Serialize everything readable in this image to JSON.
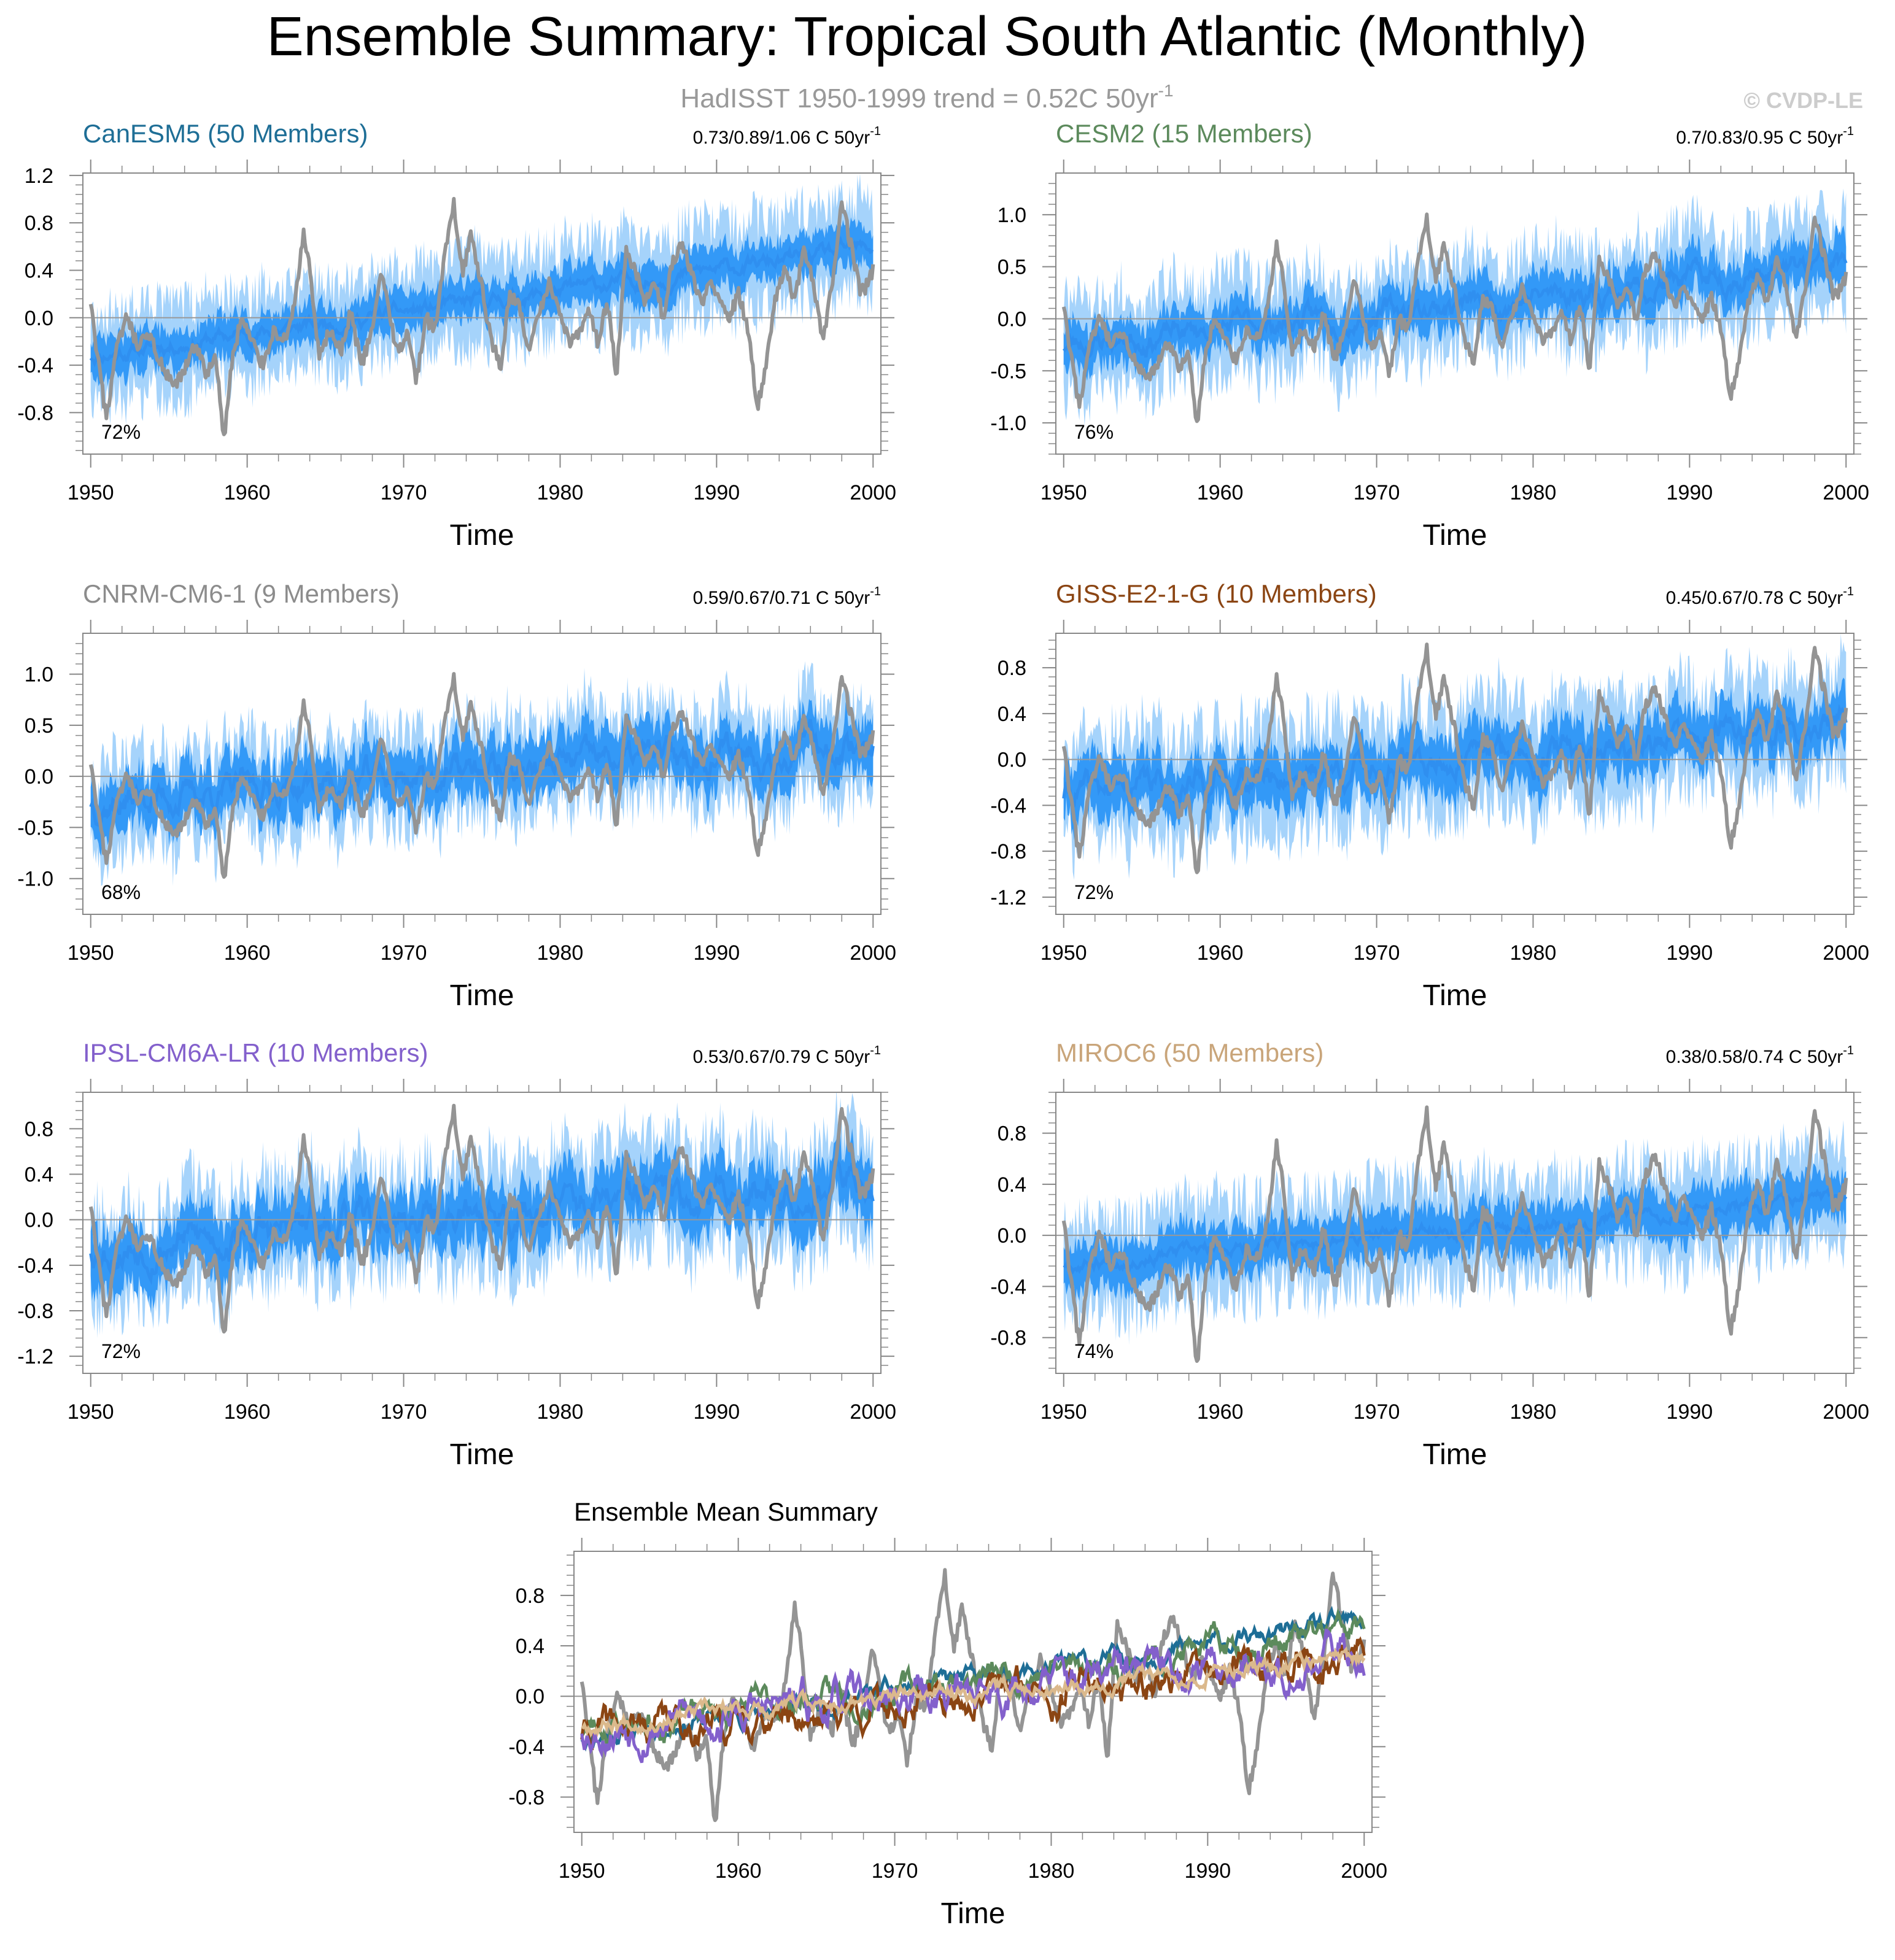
{
  "page": {
    "title": "Ensemble Summary: Tropical South Atlantic (Monthly)",
    "subtitle_main": "HadISST 1950-1999 trend = 0.52C 50yr",
    "subtitle_sup": "-1",
    "copyright": "© CVDP-LE"
  },
  "colors": {
    "obs": "#949494",
    "band_outer": "#a5d3fb",
    "band_inner": "#3399f7",
    "mean": "#2f8ff0",
    "zero_line": "#999999",
    "axis": "#888888"
  },
  "chart_data": [
    {
      "type": "line",
      "title": "CanESM5 (50 Members)",
      "title_color": "#1e6e96",
      "stats": "0.73/0.89/1.06 C 50yr",
      "stats_sup": "-1",
      "percent": "72%",
      "xlabel": "Time",
      "xlim": [
        1949.5,
        2000.5
      ],
      "ylim": [
        -1.15,
        1.22
      ],
      "xticks": [
        "1950",
        "1960",
        "1970",
        "1980",
        "1990",
        "2000"
      ],
      "yticks": [
        "1.2",
        "0.8",
        "0.4",
        "0.0",
        "-0.4",
        "-0.8"
      ],
      "ytick_values": [
        1.2,
        0.8,
        0.4,
        0.0,
        -0.4,
        -0.8
      ],
      "ensemble_mean": {
        "start": -0.32,
        "end": 0.58,
        "spread_inner": 0.16,
        "spread_outer": 0.38,
        "noise": 0.05,
        "seed": 11
      }
    },
    {
      "type": "line",
      "title": "CESM2 (15 Members)",
      "title_color": "#5c8a5c",
      "stats": "0.7/0.83/0.95 C 50yr",
      "stats_sup": "-1",
      "percent": "76%",
      "xlabel": "Time",
      "xlim": [
        1949.5,
        2000.5
      ],
      "ylim": [
        -1.3,
        1.4
      ],
      "xticks": [
        "1950",
        "1960",
        "1970",
        "1980",
        "1990",
        "2000"
      ],
      "yticks": [
        "1.0",
        "0.5",
        "0.0",
        "-0.5",
        "-1.0"
      ],
      "ytick_values": [
        1.0,
        0.5,
        0.0,
        -0.5,
        -1.0
      ],
      "ensemble_mean": {
        "start": -0.25,
        "end": 0.52,
        "spread_inner": 0.2,
        "spread_outer": 0.45,
        "noise": 0.09,
        "seed": 23
      }
    },
    {
      "type": "line",
      "title": "CNRM-CM6-1 (9 Members)",
      "title_color": "#8c8c8c",
      "stats": "0.59/0.67/0.71 C 50yr",
      "stats_sup": "-1",
      "percent": "68%",
      "xlabel": "Time",
      "xlim": [
        1949.5,
        2000.5
      ],
      "ylim": [
        -1.35,
        1.4
      ],
      "xticks": [
        "1950",
        "1960",
        "1970",
        "1980",
        "1990",
        "2000"
      ],
      "yticks": [
        "1.0",
        "0.5",
        "0.0",
        "-0.5",
        "-1.0"
      ],
      "ytick_values": [
        1.0,
        0.5,
        0.0,
        -0.5,
        -1.0
      ],
      "ensemble_mean": {
        "start": -0.25,
        "end": 0.35,
        "spread_inner": 0.25,
        "spread_outer": 0.45,
        "noise": 0.12,
        "seed": 37
      }
    },
    {
      "type": "line",
      "title": "GISS-E2-1-G (10 Members)",
      "title_color": "#8b4513",
      "stats": "0.45/0.67/0.78 C 50yr",
      "stats_sup": "-1",
      "percent": "72%",
      "xlabel": "Time",
      "xlim": [
        1949.5,
        2000.5
      ],
      "ylim": [
        -1.35,
        1.1
      ],
      "xticks": [
        "1950",
        "1960",
        "1970",
        "1980",
        "1990",
        "2000"
      ],
      "yticks": [
        "0.8",
        "0.4",
        "0.0",
        "-0.4",
        "-0.8",
        "-1.2"
      ],
      "ytick_values": [
        0.8,
        0.4,
        0.0,
        -0.4,
        -0.8,
        -1.2
      ],
      "ensemble_mean": {
        "start": -0.3,
        "end": 0.3,
        "spread_inner": 0.22,
        "spread_outer": 0.45,
        "noise": 0.1,
        "seed": 41
      }
    },
    {
      "type": "line",
      "title": "IPSL-CM6A-LR (10 Members)",
      "title_color": "#8360cc",
      "stats": "0.53/0.67/0.79 C 50yr",
      "stats_sup": "-1",
      "percent": "72%",
      "xlabel": "Time",
      "xlim": [
        1949.5,
        2000.5
      ],
      "ylim": [
        -1.35,
        1.12
      ],
      "xticks": [
        "1950",
        "1960",
        "1970",
        "1980",
        "1990",
        "2000"
      ],
      "yticks": [
        "0.8",
        "0.4",
        "0.0",
        "-0.4",
        "-0.8",
        "-1.2"
      ],
      "ytick_values": [
        0.8,
        0.4,
        0.0,
        -0.4,
        -0.8,
        -1.2
      ],
      "ensemble_mean": {
        "start": -0.25,
        "end": 0.35,
        "spread_inner": 0.25,
        "spread_outer": 0.45,
        "noise": 0.12,
        "seed": 53
      }
    },
    {
      "type": "line",
      "title": "MIROC6 (50 Members)",
      "title_color": "#c9a57a",
      "stats": "0.38/0.58/0.74 C 50yr",
      "stats_sup": "-1",
      "percent": "74%",
      "xlabel": "Time",
      "xlim": [
        1949.5,
        2000.5
      ],
      "ylim": [
        -1.08,
        1.12
      ],
      "xticks": [
        "1950",
        "1960",
        "1970",
        "1980",
        "1990",
        "2000"
      ],
      "yticks": [
        "0.8",
        "0.4",
        "0.0",
        "-0.4",
        "-0.8"
      ],
      "ytick_values": [
        0.8,
        0.4,
        0.0,
        -0.4,
        -0.8
      ],
      "ensemble_mean": {
        "start": -0.22,
        "end": 0.3,
        "spread_inner": 0.18,
        "spread_outer": 0.38,
        "noise": 0.04,
        "seed": 67
      }
    },
    {
      "type": "line",
      "title": "Ensemble Mean Summary",
      "title_color": "#000000",
      "xlabel": "Time",
      "xlim": [
        1949.5,
        2000.5
      ],
      "ylim": [
        -1.08,
        1.15
      ],
      "xticks": [
        "1950",
        "1960",
        "1970",
        "1980",
        "1990",
        "2000"
      ],
      "yticks": [
        "0.8",
        "0.4",
        "0.0",
        "-0.4",
        "-0.8"
      ],
      "ytick_values": [
        0.8,
        0.4,
        0.0,
        -0.4,
        -0.8
      ],
      "series": [
        {
          "name": "CanESM5",
          "color": "#1e6e96",
          "start": -0.32,
          "end": 0.58,
          "noise": 0.06,
          "seed": 11
        },
        {
          "name": "CESM2",
          "color": "#5c8a5c",
          "start": -0.25,
          "end": 0.52,
          "noise": 0.09,
          "seed": 23
        },
        {
          "name": "GISS-E2-1-G",
          "color": "#8b4513",
          "start": -0.3,
          "end": 0.3,
          "noise": 0.11,
          "seed": 41
        },
        {
          "name": "IPSL-CM6A-LR",
          "color": "#8360cc",
          "start": -0.25,
          "end": 0.35,
          "noise": 0.12,
          "seed": 53
        },
        {
          "name": "MIROC6",
          "color": "#dbb98c",
          "start": -0.22,
          "end": 0.3,
          "noise": 0.05,
          "seed": 67
        }
      ]
    }
  ],
  "observations": {
    "name": "HadISST",
    "anchors": [
      [
        1950.0,
        0.1
      ],
      [
        1950.5,
        -0.4
      ],
      [
        1951.0,
        -0.85
      ],
      [
        1951.6,
        -0.3
      ],
      [
        1952.3,
        0.0
      ],
      [
        1953.0,
        -0.25
      ],
      [
        1953.8,
        -0.15
      ],
      [
        1954.5,
        -0.4
      ],
      [
        1955.3,
        -0.6
      ],
      [
        1956.0,
        -0.45
      ],
      [
        1956.7,
        -0.2
      ],
      [
        1957.4,
        -0.5
      ],
      [
        1958.0,
        -0.3
      ],
      [
        1958.5,
        -1.05
      ],
      [
        1959.0,
        -0.4
      ],
      [
        1959.6,
        0.0
      ],
      [
        1960.3,
        -0.2
      ],
      [
        1961.0,
        -0.4
      ],
      [
        1961.7,
        -0.1
      ],
      [
        1962.4,
        -0.2
      ],
      [
        1963.0,
        0.1
      ],
      [
        1963.6,
        0.7
      ],
      [
        1964.0,
        0.4
      ],
      [
        1964.6,
        -0.35
      ],
      [
        1965.3,
        -0.1
      ],
      [
        1966.0,
        -0.3
      ],
      [
        1966.6,
        0.05
      ],
      [
        1967.3,
        -0.4
      ],
      [
        1968.0,
        -0.1
      ],
      [
        1968.6,
        0.4
      ],
      [
        1969.0,
        0.1
      ],
      [
        1969.6,
        -0.3
      ],
      [
        1970.3,
        -0.1
      ],
      [
        1970.8,
        -0.55
      ],
      [
        1971.4,
        0.0
      ],
      [
        1972.0,
        -0.1
      ],
      [
        1972.6,
        0.5
      ],
      [
        1973.2,
        0.95
      ],
      [
        1973.8,
        0.4
      ],
      [
        1974.3,
        0.7
      ],
      [
        1975.0,
        0.25
      ],
      [
        1975.6,
        -0.2
      ],
      [
        1976.2,
        -0.4
      ],
      [
        1976.8,
        0.2
      ],
      [
        1977.4,
        0.1
      ],
      [
        1978.0,
        -0.3
      ],
      [
        1978.6,
        0.0
      ],
      [
        1979.3,
        0.3
      ],
      [
        1980.0,
        0.05
      ],
      [
        1980.6,
        -0.2
      ],
      [
        1981.2,
        -0.15
      ],
      [
        1981.8,
        0.1
      ],
      [
        1982.4,
        -0.2
      ],
      [
        1983.0,
        0.15
      ],
      [
        1983.6,
        -0.5
      ],
      [
        1984.2,
        0.55
      ],
      [
        1984.8,
        0.4
      ],
      [
        1985.4,
        0.1
      ],
      [
        1986.0,
        0.3
      ],
      [
        1986.6,
        0.0
      ],
      [
        1987.2,
        0.5
      ],
      [
        1987.8,
        0.6
      ],
      [
        1988.4,
        0.4
      ],
      [
        1989.0,
        0.1
      ],
      [
        1989.6,
        0.3
      ],
      [
        1990.2,
        0.2
      ],
      [
        1990.8,
        0.0
      ],
      [
        1991.4,
        0.2
      ],
      [
        1992.0,
        -0.1
      ],
      [
        1992.6,
        -0.75
      ],
      [
        1993.2,
        -0.4
      ],
      [
        1993.8,
        0.2
      ],
      [
        1994.4,
        0.4
      ],
      [
        1995.0,
        0.15
      ],
      [
        1995.6,
        0.6
      ],
      [
        1996.2,
        0.3
      ],
      [
        1996.8,
        -0.2
      ],
      [
        1997.4,
        0.3
      ],
      [
        1998.0,
        1.0
      ],
      [
        1998.6,
        0.6
      ],
      [
        1999.2,
        0.2
      ],
      [
        1999.7,
        0.3
      ],
      [
        2000.0,
        0.4
      ]
    ]
  }
}
